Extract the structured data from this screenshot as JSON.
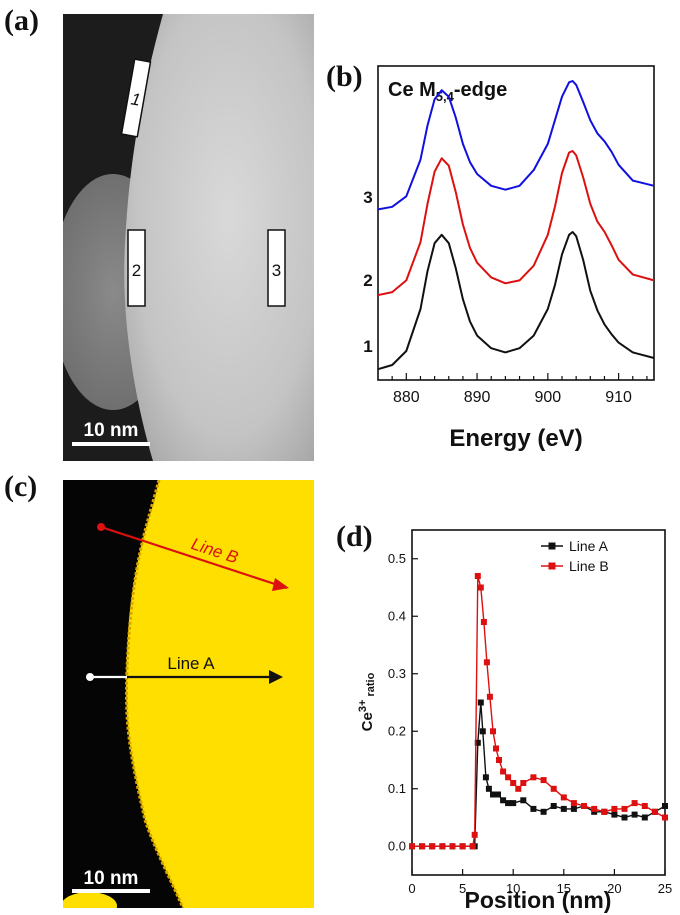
{
  "panel_labels": {
    "a": "(a)",
    "b": "(b)",
    "c": "(c)",
    "d": "(d)"
  },
  "image_a": {
    "box_labels": [
      "1",
      "2",
      "3"
    ],
    "scale_bar": "10 nm"
  },
  "image_c": {
    "line_a_label": "Line A",
    "line_b_label": "Line B",
    "scale_bar": "10 nm"
  },
  "colors": {
    "spectrum_3": "#1010e0",
    "spectrum_2": "#dd1010",
    "spectrum_1": "#111111",
    "line_a": "#111111",
    "line_b": "#dd1010",
    "map_particle": "#ffdf00"
  },
  "chart_data": [
    {
      "type": "line",
      "title": "Ce M5,4-edge",
      "title_main": "Ce M",
      "title_sub": "5,4",
      "title_tail": "-edge",
      "xlabel": "Energy (eV)",
      "xlim": [
        876,
        915
      ],
      "xticks": [
        880,
        890,
        900,
        910
      ],
      "series": [
        {
          "name": "1",
          "x": [
            876,
            878,
            880,
            882,
            883,
            884,
            885,
            886,
            887,
            888,
            889,
            890,
            892,
            894,
            896,
            898,
            900,
            901,
            902,
            903,
            903.5,
            904,
            905,
            906,
            907,
            908,
            909,
            910,
            912,
            915
          ],
          "y": [
            0.02,
            0.05,
            0.15,
            0.45,
            0.72,
            0.92,
            0.98,
            0.92,
            0.74,
            0.52,
            0.36,
            0.26,
            0.17,
            0.14,
            0.17,
            0.26,
            0.45,
            0.62,
            0.84,
            0.98,
            1.0,
            0.97,
            0.8,
            0.58,
            0.44,
            0.34,
            0.27,
            0.21,
            0.14,
            0.1
          ]
        },
        {
          "name": "2",
          "x": [
            876,
            878,
            880,
            882,
            883,
            884,
            885,
            886,
            887,
            888,
            889,
            890,
            892,
            894,
            896,
            898,
            900,
            901,
            902,
            903,
            903.5,
            904,
            905,
            906,
            907,
            908,
            909,
            910,
            912,
            915
          ],
          "y": [
            0.02,
            0.04,
            0.12,
            0.38,
            0.64,
            0.86,
            0.95,
            0.9,
            0.72,
            0.5,
            0.34,
            0.24,
            0.14,
            0.1,
            0.12,
            0.22,
            0.43,
            0.62,
            0.85,
            0.99,
            1.0,
            0.97,
            0.82,
            0.64,
            0.52,
            0.45,
            0.36,
            0.26,
            0.16,
            0.12
          ]
        },
        {
          "name": "3",
          "x": [
            876,
            878,
            880,
            882,
            883,
            884,
            885,
            886,
            887,
            888,
            889,
            890,
            892,
            894,
            896,
            898,
            900,
            901,
            902,
            903,
            903.5,
            904,
            905,
            906,
            907,
            908,
            909,
            910,
            912,
            915
          ],
          "y": [
            0.02,
            0.04,
            0.12,
            0.4,
            0.66,
            0.86,
            0.93,
            0.88,
            0.72,
            0.52,
            0.38,
            0.29,
            0.2,
            0.17,
            0.2,
            0.32,
            0.52,
            0.7,
            0.88,
            0.99,
            1.0,
            0.97,
            0.84,
            0.7,
            0.6,
            0.54,
            0.46,
            0.36,
            0.24,
            0.2
          ]
        }
      ]
    },
    {
      "type": "line",
      "xlabel": "Position (nm)",
      "ylabel": "Ce3+ ratio",
      "ylabel_main": "Ce",
      "ylabel_sup": "3+",
      "ylabel_tail": " ratio",
      "xlim": [
        0,
        25
      ],
      "ylim": [
        -0.05,
        0.55
      ],
      "xticks": [
        0,
        5,
        10,
        15,
        20,
        25
      ],
      "yticks": [
        0.0,
        0.1,
        0.2,
        0.3,
        0.4,
        0.5
      ],
      "legend_position": "top-right",
      "series": [
        {
          "name": "Line A",
          "x": [
            0,
            1,
            2,
            3,
            4,
            5,
            6,
            6.2,
            6.5,
            6.8,
            7.0,
            7.3,
            7.6,
            8,
            8.5,
            9,
            9.5,
            10,
            11,
            12,
            13,
            14,
            15,
            16,
            17,
            18,
            19,
            20,
            21,
            22,
            23,
            24,
            25
          ],
          "y": [
            0,
            0,
            0,
            0,
            0,
            0,
            0,
            0,
            0.18,
            0.25,
            0.2,
            0.12,
            0.1,
            0.09,
            0.09,
            0.08,
            0.075,
            0.075,
            0.08,
            0.065,
            0.06,
            0.07,
            0.065,
            0.065,
            0.07,
            0.06,
            0.06,
            0.055,
            0.05,
            0.055,
            0.05,
            0.06,
            0.07
          ]
        },
        {
          "name": "Line B",
          "x": [
            0,
            1,
            2,
            3,
            4,
            5,
            6,
            6.2,
            6.5,
            6.8,
            7.1,
            7.4,
            7.7,
            8.0,
            8.3,
            8.6,
            9,
            9.5,
            10,
            10.5,
            11,
            12,
            13,
            14,
            15,
            16,
            17,
            18,
            19,
            20,
            21,
            22,
            23,
            24,
            25
          ],
          "y": [
            0,
            0,
            0,
            0,
            0,
            0,
            0,
            0.02,
            0.47,
            0.45,
            0.39,
            0.32,
            0.26,
            0.2,
            0.17,
            0.15,
            0.13,
            0.12,
            0.11,
            0.1,
            0.11,
            0.12,
            0.115,
            0.1,
            0.085,
            0.075,
            0.07,
            0.065,
            0.06,
            0.065,
            0.065,
            0.075,
            0.07,
            0.06,
            0.05
          ]
        }
      ]
    }
  ]
}
